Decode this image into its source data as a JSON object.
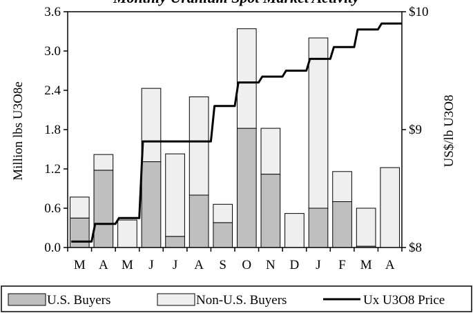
{
  "chart_data": {
    "type": "bar",
    "title": "Monthly Uranium Spot Market Activity",
    "categories": [
      "M",
      "A",
      "M",
      "J",
      "J",
      "A",
      "S",
      "O",
      "N",
      "D",
      "J",
      "F",
      "M",
      "A"
    ],
    "series": [
      {
        "name": "U.S. Buyers",
        "type": "bar",
        "stacked": true,
        "color": "#bfbfbf",
        "values": [
          0.45,
          1.18,
          0.0,
          1.31,
          0.17,
          0.8,
          0.38,
          1.82,
          1.12,
          0.0,
          0.6,
          0.7,
          0.02,
          0.0
        ]
      },
      {
        "name": "Non-U.S. Buyers",
        "type": "bar",
        "stacked": true,
        "color": "#efefef",
        "values": [
          0.32,
          0.24,
          0.42,
          1.12,
          1.26,
          1.5,
          0.28,
          1.52,
          0.7,
          0.52,
          2.6,
          0.46,
          0.58,
          1.22
        ]
      },
      {
        "name": "Ux U3O8 Price",
        "type": "step-line",
        "axis": "right",
        "color": "#000000",
        "values": [
          8.05,
          8.2,
          8.25,
          8.9,
          8.9,
          8.9,
          9.2,
          9.4,
          9.45,
          9.5,
          9.6,
          9.7,
          9.85,
          9.9
        ]
      }
    ],
    "xlabel": "",
    "ylabel": "Million lbs U3O8e",
    "y2label": "US$/lb U3O8",
    "ylim": [
      0,
      3.6
    ],
    "yticks": [
      "0.0",
      "0.6",
      "1.2",
      "1.8",
      "2.4",
      "3.0",
      "3.6"
    ],
    "y2lim": [
      8,
      10
    ],
    "y2ticks": [
      "$8",
      "$9",
      "$10"
    ],
    "grid": false,
    "legend_position": "bottom"
  }
}
